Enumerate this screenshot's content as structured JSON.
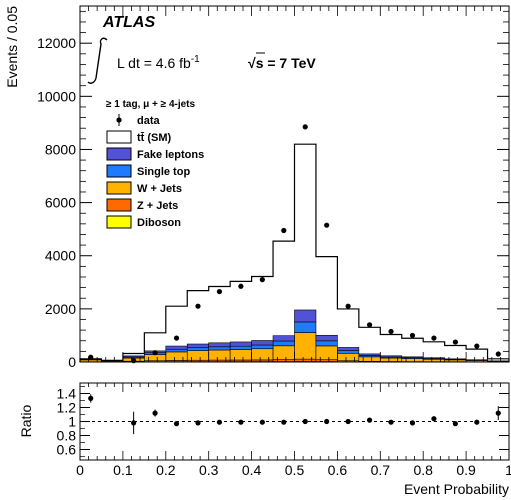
{
  "chart_data": [
    {
      "type": "histogram",
      "ylabel": "Events / 0.05",
      "xlim": [
        0,
        1
      ],
      "ylim": [
        0,
        13400
      ],
      "yticks": [
        0,
        2000,
        4000,
        6000,
        8000,
        10000,
        12000
      ],
      "annotations": {
        "experiment": "ATLAS",
        "lumi_prefix": "L dt = 4.6 fb",
        "lumi_sup": "-1",
        "energy_prefix": "√",
        "energy_rest": "s = 7 TeV",
        "selection": "≥ 1 tag, μ + ≥ 4-jets"
      },
      "bin_edges": [
        0.0,
        0.05,
        0.1,
        0.15,
        0.2,
        0.25,
        0.3,
        0.35,
        0.4,
        0.45,
        0.5,
        0.55,
        0.6,
        0.65,
        0.7,
        0.75,
        0.8,
        0.85,
        0.9,
        0.95,
        1.0
      ],
      "legend": [
        {
          "label": "data",
          "kind": "marker",
          "color": "#000000"
        },
        {
          "label": "tt̄ (SM)",
          "kind": "box",
          "color": "#ffffff"
        },
        {
          "label": "Fake leptons",
          "kind": "box",
          "color": "#5252d6"
        },
        {
          "label": "Single top",
          "kind": "box",
          "color": "#1e7bff"
        },
        {
          "label": "W + Jets",
          "kind": "box",
          "color": "#ffb300"
        },
        {
          "label": "Z + Jets",
          "kind": "box",
          "color": "#ff6a00"
        },
        {
          "label": "Diboson",
          "kind": "box",
          "color": "#ffff00"
        }
      ],
      "stack": [
        {
          "name": "Diboson",
          "color": "#ffff00",
          "values": [
            2,
            2,
            5,
            8,
            10,
            12,
            12,
            13,
            14,
            15,
            18,
            16,
            8,
            5,
            4,
            3,
            3,
            2,
            2,
            1
          ]
        },
        {
          "name": "Z + Jets",
          "color": "#ff6a00",
          "values": [
            8,
            6,
            25,
            40,
            50,
            55,
            60,
            62,
            65,
            75,
            90,
            70,
            40,
            20,
            15,
            12,
            10,
            8,
            6,
            4
          ]
        },
        {
          "name": "W + Jets",
          "color": "#ffb300",
          "values": [
            70,
            30,
            120,
            230,
            320,
            360,
            380,
            390,
            420,
            520,
            1000,
            520,
            280,
            170,
            130,
            110,
            90,
            70,
            50,
            25
          ]
        },
        {
          "name": "Single top",
          "color": "#1e7bff",
          "values": [
            20,
            10,
            40,
            70,
            100,
            110,
            120,
            130,
            140,
            180,
            400,
            190,
            100,
            50,
            40,
            35,
            30,
            22,
            15,
            5
          ]
        },
        {
          "name": "Fake leptons",
          "color": "#5252d6",
          "values": [
            20,
            10,
            40,
            70,
            120,
            140,
            150,
            160,
            170,
            200,
            450,
            210,
            120,
            60,
            45,
            35,
            27,
            18,
            12,
            5
          ]
        },
        {
          "name": "tt̄ (SM)",
          "color": "#ffffff",
          "values": [
            0,
            5,
            90,
            680,
            1500,
            2010,
            2120,
            2280,
            2410,
            3560,
            6240,
            2960,
            1450,
            1000,
            800,
            700,
            600,
            500,
            400,
            80
          ]
        }
      ],
      "data_points": [
        {
          "x": 0.025,
          "y": 180
        },
        {
          "x": 0.125,
          "y": 50
        },
        {
          "x": 0.175,
          "y": 350
        },
        {
          "x": 0.225,
          "y": 900
        },
        {
          "x": 0.275,
          "y": 2100
        },
        {
          "x": 0.325,
          "y": 2650
        },
        {
          "x": 0.375,
          "y": 2850
        },
        {
          "x": 0.425,
          "y": 3100
        },
        {
          "x": 0.475,
          "y": 4950
        },
        {
          "x": 0.525,
          "y": 8850
        },
        {
          "x": 0.575,
          "y": 5150
        },
        {
          "x": 0.625,
          "y": 2100
        },
        {
          "x": 0.675,
          "y": 1400
        },
        {
          "x": 0.725,
          "y": 1150
        },
        {
          "x": 0.775,
          "y": 1000
        },
        {
          "x": 0.825,
          "y": 900
        },
        {
          "x": 0.875,
          "y": 750
        },
        {
          "x": 0.925,
          "y": 600
        },
        {
          "x": 0.975,
          "y": 300
        }
      ]
    },
    {
      "type": "scatter",
      "xlabel": "Event Probability",
      "ylabel": "Ratio",
      "xlim": [
        0,
        1
      ],
      "ylim": [
        0.45,
        1.55
      ],
      "xticks": [
        0,
        0.1,
        0.2,
        0.3,
        0.4,
        0.5,
        0.6,
        0.7,
        0.8,
        0.9,
        1
      ],
      "xtick_labels": [
        "0",
        "0.1",
        "0.2",
        "0.3",
        "0.4",
        "0.5",
        "0.6",
        "0.7",
        "0.8",
        "0.9",
        "1"
      ],
      "yticks": [
        0.6,
        0.8,
        1.2,
        1.4
      ],
      "ytick_labels": [
        "0.6",
        "0.8",
        "1",
        "1.2",
        "1.4"
      ],
      "ytick_label_values": [
        0.6,
        0.8,
        1.0,
        1.2,
        1.4
      ],
      "reference_line": 1.0,
      "points": [
        {
          "x": 0.025,
          "y": 1.33,
          "err": 0.06
        },
        {
          "x": 0.125,
          "y": 0.98,
          "err": 0.16
        },
        {
          "x": 0.175,
          "y": 1.12,
          "err": 0.05
        },
        {
          "x": 0.225,
          "y": 0.97,
          "err": 0.01
        },
        {
          "x": 0.275,
          "y": 0.98,
          "err": 0.01
        },
        {
          "x": 0.325,
          "y": 0.99,
          "err": 0.01
        },
        {
          "x": 0.375,
          "y": 0.99,
          "err": 0.01
        },
        {
          "x": 0.425,
          "y": 0.99,
          "err": 0.01
        },
        {
          "x": 0.475,
          "y": 0.99,
          "err": 0.01
        },
        {
          "x": 0.525,
          "y": 1.0,
          "err": 0.01
        },
        {
          "x": 0.575,
          "y": 1.0,
          "err": 0.01
        },
        {
          "x": 0.625,
          "y": 1.0,
          "err": 0.01
        },
        {
          "x": 0.675,
          "y": 1.02,
          "err": 0.02
        },
        {
          "x": 0.725,
          "y": 0.99,
          "err": 0.02
        },
        {
          "x": 0.775,
          "y": 0.98,
          "err": 0.02
        },
        {
          "x": 0.825,
          "y": 1.04,
          "err": 0.02
        },
        {
          "x": 0.875,
          "y": 0.97,
          "err": 0.02
        },
        {
          "x": 0.925,
          "y": 0.99,
          "err": 0.03
        },
        {
          "x": 0.975,
          "y": 1.12,
          "err": 0.1
        }
      ]
    }
  ]
}
